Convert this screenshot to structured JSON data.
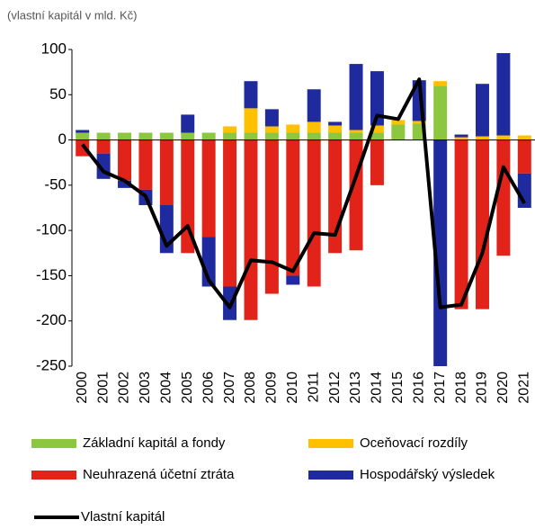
{
  "chart_data": {
    "type": "bar",
    "stacked": true,
    "subtitle": "(vlastní kapitál v mld. Kč)",
    "categories": [
      "2000",
      "2001",
      "2002",
      "2003",
      "2004",
      "2005",
      "2006",
      "2007",
      "2008",
      "2009",
      "2010",
      "2011",
      "2012",
      "2013",
      "2014",
      "2015",
      "2016",
      "2017",
      "2018",
      "2019",
      "2020",
      "2021"
    ],
    "series": [
      {
        "name": "Základní kapitál a fondy",
        "color": "#8dc63f",
        "values": [
          8,
          8,
          8,
          8,
          8,
          8,
          8,
          8,
          8,
          8,
          8,
          8,
          8,
          8,
          8,
          17,
          18,
          60,
          null,
          null,
          null,
          null
        ]
      },
      {
        "name": "Oceňovací rozdíly",
        "color": "#ffc000",
        "values": [
          null,
          null,
          null,
          null,
          null,
          null,
          null,
          7,
          27,
          7,
          9,
          12,
          8,
          3,
          8,
          5,
          3,
          5,
          3,
          4,
          5,
          5
        ]
      },
      {
        "name": "Neuhrazená účetní ztráta",
        "color": "#e2231a",
        "values": [
          -18,
          -15,
          -45,
          -55,
          -72,
          -125,
          -107,
          -162,
          -199,
          -170,
          -150,
          -162,
          -125,
          -122,
          -50,
          null,
          null,
          null,
          -187,
          -187,
          -128,
          -37
        ]
      },
      {
        "name": "Hospodářský výsledek",
        "color": "#1f2a9e",
        "values": [
          3,
          -28,
          -8,
          -17,
          -53,
          20,
          -55,
          -37,
          30,
          19,
          -10,
          36,
          4,
          73,
          60,
          null,
          45,
          -250,
          3,
          58,
          91,
          -38
        ]
      },
      {
        "name": "Vlastní kapitál",
        "color": "#000000",
        "type": "line",
        "values": [
          -5,
          -35,
          -45,
          -62,
          -117,
          -95,
          -155,
          -185,
          -133,
          -135,
          -145,
          -103,
          -105,
          -40,
          27,
          23,
          67,
          -185,
          -182,
          -125,
          -30,
          -70
        ]
      }
    ],
    "ylim": [
      -250,
      100
    ],
    "yticks": [
      -250,
      -200,
      -150,
      -100,
      -50,
      0,
      50,
      100
    ],
    "grid": false
  }
}
